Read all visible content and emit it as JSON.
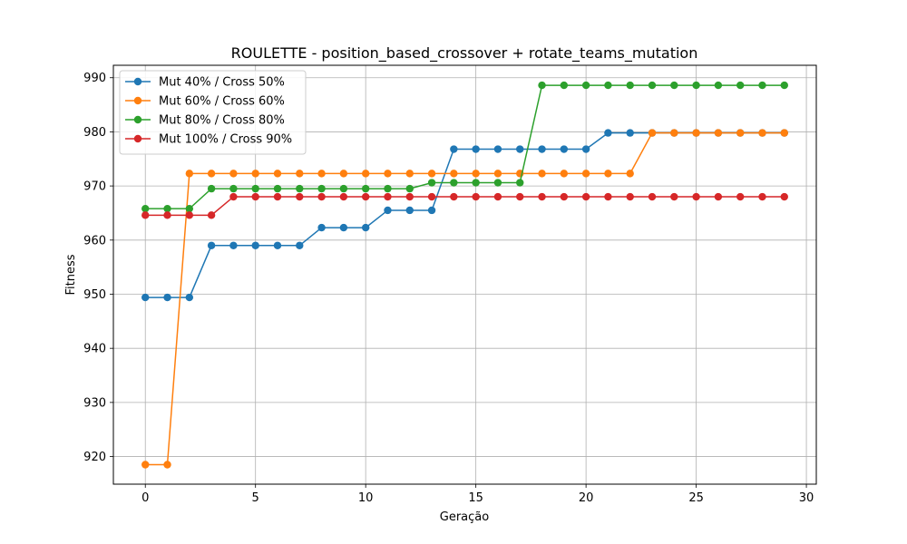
{
  "chart_data": {
    "type": "line",
    "title": "ROULETTE - position_based_crossover + rotate_teams_mutation",
    "xlabel": "Geração",
    "ylabel": "Fitness",
    "xlim": [
      -1.45,
      30.45
    ],
    "ylim": [
      914.9,
      992.3
    ],
    "xticks": [
      0,
      5,
      10,
      15,
      20,
      25,
      30
    ],
    "yticks": [
      920,
      930,
      940,
      950,
      960,
      970,
      980,
      990
    ],
    "grid": true,
    "legend_position": "top-left",
    "x": [
      0,
      1,
      2,
      3,
      4,
      5,
      6,
      7,
      8,
      9,
      10,
      11,
      12,
      13,
      14,
      15,
      16,
      17,
      18,
      19,
      20,
      21,
      22,
      23,
      24,
      25,
      26,
      27,
      28,
      29
    ],
    "series": [
      {
        "name": "Mut 40% / Cross 50%",
        "color": "#1f77b4",
        "values": [
          949.4,
          949.4,
          949.4,
          959.0,
          959.0,
          959.0,
          959.0,
          959.0,
          962.3,
          962.3,
          962.3,
          965.5,
          965.5,
          965.5,
          976.8,
          976.8,
          976.8,
          976.8,
          976.8,
          976.8,
          976.8,
          979.8,
          979.8,
          979.8,
          979.8,
          979.8,
          979.8,
          979.8,
          979.8,
          979.8
        ]
      },
      {
        "name": "Mut 60% / Cross 60%",
        "color": "#ff7f0e",
        "values": [
          918.5,
          918.5,
          972.3,
          972.3,
          972.3,
          972.3,
          972.3,
          972.3,
          972.3,
          972.3,
          972.3,
          972.3,
          972.3,
          972.3,
          972.3,
          972.3,
          972.3,
          972.3,
          972.3,
          972.3,
          972.3,
          972.3,
          972.3,
          979.8,
          979.8,
          979.8,
          979.8,
          979.8,
          979.8,
          979.8
        ]
      },
      {
        "name": "Mut 80% / Cross 80%",
        "color": "#2ca02c",
        "values": [
          965.8,
          965.8,
          965.8,
          969.5,
          969.5,
          969.5,
          969.5,
          969.5,
          969.5,
          969.5,
          969.5,
          969.5,
          969.5,
          970.6,
          970.6,
          970.6,
          970.6,
          970.6,
          988.6,
          988.6,
          988.6,
          988.6,
          988.6,
          988.6,
          988.6,
          988.6,
          988.6,
          988.6,
          988.6,
          988.6
        ]
      },
      {
        "name": "Mut 100% / Cross 90%",
        "color": "#d62728",
        "values": [
          964.6,
          964.6,
          964.6,
          964.6,
          968.0,
          968.0,
          968.0,
          968.0,
          968.0,
          968.0,
          968.0,
          968.0,
          968.0,
          968.0,
          968.0,
          968.0,
          968.0,
          968.0,
          968.0,
          968.0,
          968.0,
          968.0,
          968.0,
          968.0,
          968.0,
          968.0,
          968.0,
          968.0,
          968.0,
          968.0
        ]
      }
    ]
  }
}
